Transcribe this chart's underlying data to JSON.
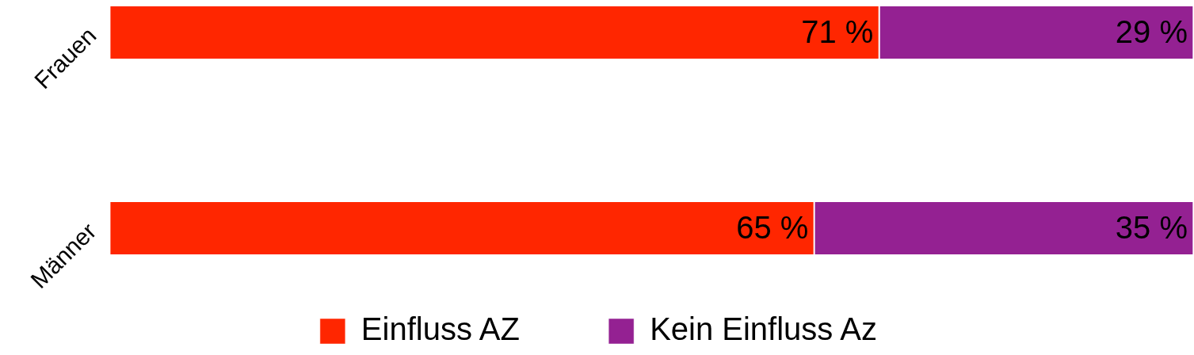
{
  "chart_data": {
    "type": "bar",
    "orientation": "horizontal",
    "stacked": true,
    "categories": [
      "Frauen",
      "Männer"
    ],
    "series": [
      {
        "name": "Einfluss AZ",
        "color": "#ff2600",
        "values": [
          71,
          65
        ],
        "value_labels": [
          "71 %",
          "65 %"
        ]
      },
      {
        "name": "Kein Einfluss Az",
        "color": "#942192",
        "values": [
          29,
          35
        ],
        "value_labels": [
          "29 %",
          "35 %"
        ]
      }
    ],
    "xlim": [
      0,
      100
    ],
    "legend": "bottom",
    "tick_labels": "y"
  }
}
